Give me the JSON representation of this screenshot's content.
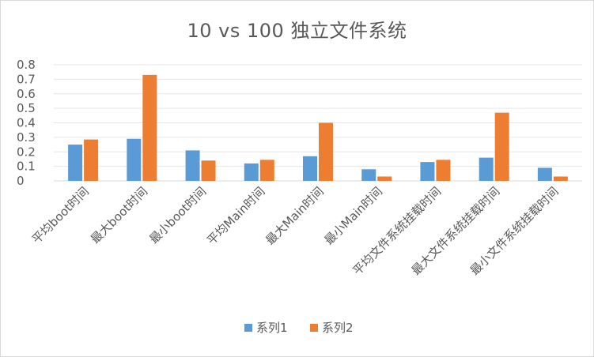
{
  "chart_data": {
    "type": "bar",
    "title": "10 vs 100 独立文件系统",
    "categories": [
      "平均boot时间",
      "最大boot时间",
      "最小boot时间",
      "平均Main时间",
      "最大Main时间",
      "最小Main时间",
      "平均文件系统挂载时间",
      "最大文件系统挂载时间",
      "最小文件系统挂载时间"
    ],
    "series": [
      {
        "name": "系列1",
        "color": "#5b9bd5",
        "values": [
          0.25,
          0.29,
          0.21,
          0.12,
          0.17,
          0.08,
          0.13,
          0.16,
          0.09
        ]
      },
      {
        "name": "系列2",
        "color": "#ed7d31",
        "values": [
          0.285,
          0.73,
          0.14,
          0.145,
          0.4,
          0.03,
          0.145,
          0.47,
          0.03
        ]
      }
    ],
    "ylim": [
      0,
      0.8
    ],
    "yticks": [
      "0",
      "0.1",
      "0.2",
      "0.3",
      "0.4",
      "0.5",
      "0.6",
      "0.7",
      "0.8"
    ],
    "grid": true,
    "legend": "bottom"
  }
}
